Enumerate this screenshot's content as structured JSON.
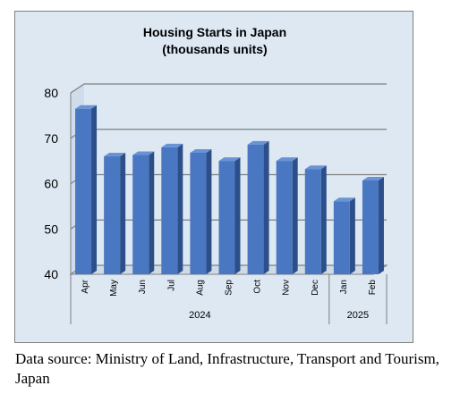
{
  "chart_data": {
    "type": "bar",
    "title": "Housing Starts in Japan",
    "subtitle": "(thousands units)",
    "categories": [
      "Apr",
      "May",
      "Jun",
      "Jul",
      "Aug",
      "Sep",
      "Oct",
      "Nov",
      "Dec",
      "Jan",
      "Feb"
    ],
    "groups": [
      {
        "label": "2024",
        "count": 9
      },
      {
        "label": "2025",
        "count": 2
      }
    ],
    "values": [
      76.5,
      66,
      66.3,
      68,
      66.8,
      65,
      68.6,
      65,
      63.2,
      56.1,
      60.7
    ],
    "ylim": [
      40,
      80
    ],
    "yticks": [
      40,
      50,
      60,
      70,
      80
    ],
    "grid": true,
    "legend": "none",
    "bar_color": "#4a77c1",
    "background_color": "#dde8f3"
  },
  "source_note": "Data source: Ministry of Land, Infrastructure, Transport and Tourism, Japan"
}
